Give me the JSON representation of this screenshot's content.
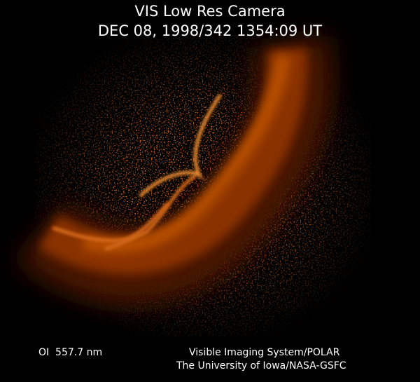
{
  "header": {
    "title": "VIS Low Res Camera",
    "timestamp": "DEC 08, 1998/342 1354:09 UT"
  },
  "footer": {
    "wavelength": "OI  557.7 nm",
    "instrument": "Visible Imaging System/POLAR",
    "credit": "The University of Iowa/NASA-GSFC"
  }
}
